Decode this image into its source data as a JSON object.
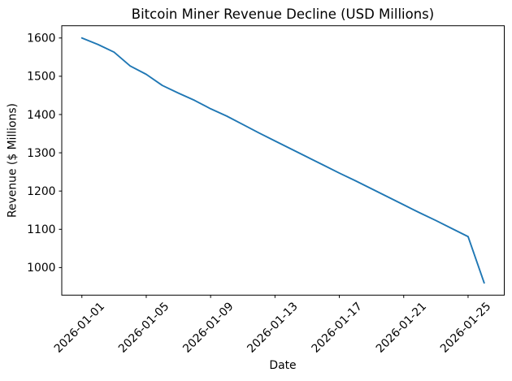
{
  "chart_data": {
    "type": "line",
    "title": "Bitcoin Miner Revenue Decline (USD Millions)",
    "xlabel": "Date",
    "ylabel": "Revenue ($ Millions)",
    "x": [
      "2026-01-01",
      "2026-01-02",
      "2026-01-03",
      "2026-01-04",
      "2026-01-05",
      "2026-01-06",
      "2026-01-07",
      "2026-01-08",
      "2026-01-09",
      "2026-01-10",
      "2026-01-11",
      "2026-01-12",
      "2026-01-13",
      "2026-01-14",
      "2026-01-15",
      "2026-01-16",
      "2026-01-17",
      "2026-01-18",
      "2026-01-19",
      "2026-01-20",
      "2026-01-21",
      "2026-01-22",
      "2026-01-23",
      "2026-01-24",
      "2026-01-25",
      "2026-01-26"
    ],
    "values": [
      1600,
      1583,
      1563,
      1527,
      1505,
      1476,
      1456,
      1437,
      1415,
      1396,
      1374,
      1352,
      1331,
      1310,
      1289,
      1268,
      1247,
      1227,
      1206,
      1185,
      1164,
      1143,
      1123,
      1102,
      1081,
      960
    ],
    "series_name": "Revenue",
    "xtick_labels": [
      "2026-01-01",
      "2026-01-05",
      "2026-01-09",
      "2026-01-13",
      "2026-01-17",
      "2026-01-21",
      "2026-01-25"
    ],
    "ytick_labels": [
      "1000",
      "1100",
      "1200",
      "1300",
      "1400",
      "1500",
      "1600"
    ],
    "ylim": [
      928,
      1632
    ],
    "grid": false,
    "legend": "none",
    "markers": "none",
    "line_color": "#1f77b4",
    "axis_color": "#000000",
    "text_color": "#000000",
    "background_color": "#ffffff"
  }
}
